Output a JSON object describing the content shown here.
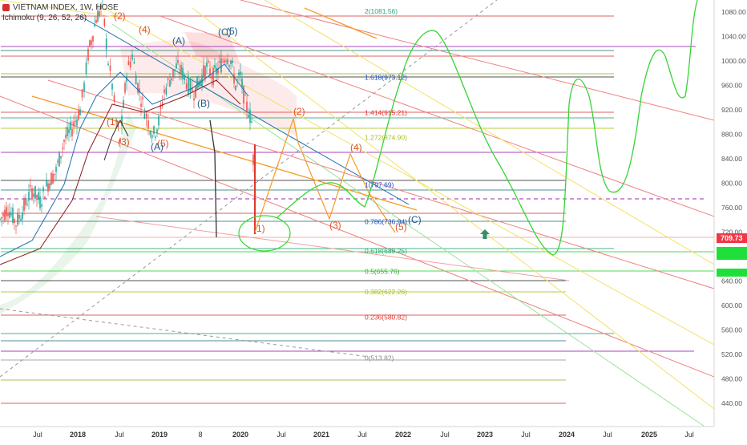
{
  "header": {
    "symbol": "VIETNAM INDEX, 1W, HOSE",
    "indicator": "Ichimoku (9, 26, 52, 26)"
  },
  "colors": {
    "price_tag": "#f23645",
    "tag_green": "#1fe03b",
    "fib_label_blue": "#2962ff",
    "candle_up": "#26a69a",
    "candle_down": "#ef5350",
    "projection_green": "#36d436",
    "wave_orange": "#f59b24"
  },
  "chart_data": {
    "type": "candlestick",
    "symbol": "VIETNAM INDEX",
    "interval": "1W",
    "exchange": "HOSE",
    "current_price": "709.73",
    "y_ticks": [
      "1080.00",
      "1040.00",
      "1000.00",
      "960.00",
      "920.00",
      "880.00",
      "840.00",
      "800.00",
      "760.00",
      "720.00",
      "680.00",
      "640.00",
      "600.00",
      "560.00",
      "520.00",
      "480.00",
      "440.00"
    ],
    "x_ticks": [
      "Jul",
      "2018",
      "Jul",
      "2019",
      "8",
      "2020",
      "Jul",
      "2021",
      "Jul",
      "2022",
      "Jul",
      "2023",
      "Jul",
      "2024",
      "Jul",
      "2025",
      "Jul"
    ],
    "ylim": [
      420,
      1100
    ],
    "fib_levels": [
      {
        "ratio": "2",
        "value": 1081.56,
        "label": "2(1081.56)",
        "color": "#2aa876"
      },
      {
        "ratio": "1.618",
        "value": 973.12,
        "label": "1.618(973.12)",
        "color": "#1f4fbf"
      },
      {
        "ratio": "1.414",
        "value": 915.21,
        "label": "1.414(915.21)",
        "color": "#e0362f"
      },
      {
        "ratio": "1.272",
        "value": 874.9,
        "label": "1.272(874.90)",
        "color": "#a7c21d"
      },
      {
        "ratio": "1",
        "value": 797.69,
        "label": "1(797.69)",
        "color": "#1f4fbf"
      },
      {
        "ratio": "0.786",
        "value": 736.94,
        "label": "0.786(736.94)",
        "color": "#1f4fbf"
      },
      {
        "ratio": "0.618",
        "value": 689.25,
        "label": "0.618(689.25)",
        "color": "#2aa876"
      },
      {
        "ratio": "0.5",
        "value": 655.76,
        "label": "0.5(655.76)",
        "color": "#3ea63e"
      },
      {
        "ratio": "0.382",
        "value": 622.26,
        "label": "0.382(622.26)",
        "color": "#a7c21d"
      },
      {
        "ratio": "0.236",
        "value": 580.82,
        "label": "0.236(580.82)",
        "color": "#e0362f"
      },
      {
        "ratio": "0",
        "value": 513.82,
        "label": "0(513.82)",
        "color": "#888888"
      }
    ],
    "wave_labels": [
      {
        "text": "(1)",
        "x": 133,
        "y": 156,
        "color": "#e0552a"
      },
      {
        "text": "(2)",
        "x": 142,
        "y": 24,
        "color": "#e0552a"
      },
      {
        "text": "(3)",
        "x": 147,
        "y": 181,
        "color": "#e0552a"
      },
      {
        "text": "(4)",
        "x": 173,
        "y": 41,
        "color": "#e0552a"
      },
      {
        "text": "(5)",
        "x": 196,
        "y": 183,
        "color": "#e0552a"
      },
      {
        "text": "(A)",
        "x": 215,
        "y": 55,
        "color": "#1f5a8a"
      },
      {
        "text": "(A)",
        "x": 188,
        "y": 187,
        "color": "#1f5a8a"
      },
      {
        "text": "(B)",
        "x": 246,
        "y": 133,
        "color": "#1f5a8a"
      },
      {
        "text": "(C)",
        "x": 272,
        "y": 44,
        "color": "#1f5a8a"
      },
      {
        "text": "(5)",
        "x": 282,
        "y": 43,
        "color": "#1f5a8a"
      },
      {
        "text": "(1)",
        "x": 316,
        "y": 289,
        "color": "#e0552a"
      },
      {
        "text": "(2)",
        "x": 366,
        "y": 143,
        "color": "#e0552a"
      },
      {
        "text": "(3)",
        "x": 411,
        "y": 285,
        "color": "#e0552a"
      },
      {
        "text": "(4)",
        "x": 437,
        "y": 188,
        "color": "#e0552a"
      },
      {
        "text": "(5)",
        "x": 493,
        "y": 287,
        "color": "#e0552a"
      },
      {
        "text": "(C)",
        "x": 509,
        "y": 278,
        "color": "#1f5a8a"
      }
    ],
    "right_tags": [
      {
        "text": "709.73",
        "y": 297,
        "color": "#f23645"
      }
    ],
    "green_tags": [
      {
        "y": 313
      },
      {
        "y": 319
      },
      {
        "y": 340
      }
    ]
  }
}
